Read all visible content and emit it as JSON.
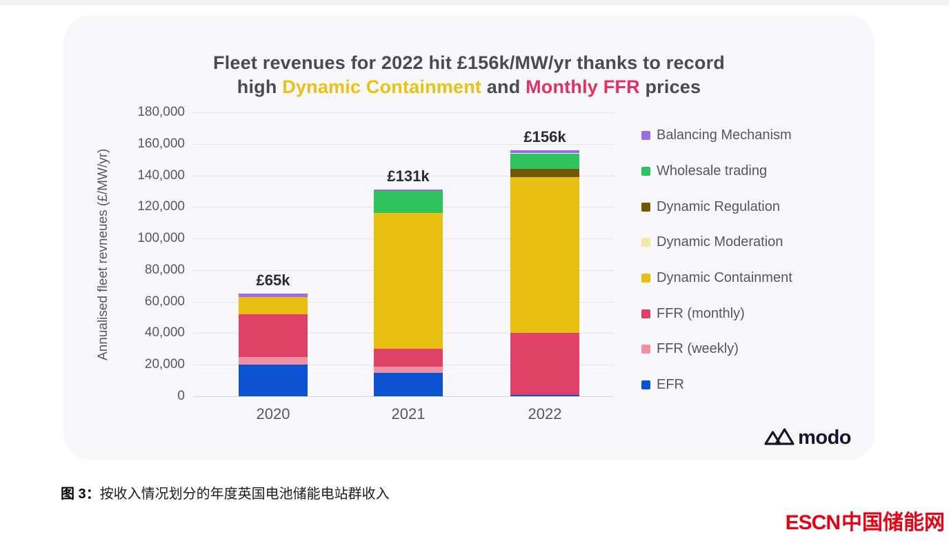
{
  "page": {
    "background": "#ffffff",
    "top_strip_color": "#f3f3f5",
    "card_background": "#f8f8fa"
  },
  "header": {
    "line1": "Fleet revenues for 2022 hit £156k/MW/yr thanks to record",
    "line2_parts": [
      {
        "text": "high ",
        "color": "#4b4b4e"
      },
      {
        "text": "Dynamic Containment",
        "color": "#ecc113"
      },
      {
        "text": " and ",
        "color": "#4b4b4e"
      },
      {
        "text": "Monthly FFR",
        "color": "#e3325f"
      },
      {
        "text": " prices",
        "color": "#4b4b4e"
      }
    ],
    "text_color": "#4b4b4e"
  },
  "chart_data": {
    "type": "bar",
    "stacked": true,
    "title": "Fleet revenues for 2022 hit £156k/MW/yr thanks to record high Dynamic Containment and Monthly FFR prices",
    "categories": [
      "2020",
      "2021",
      "2022"
    ],
    "series": [
      {
        "name": "EFR",
        "color": "#0b53d0",
        "values": [
          20000,
          15000,
          1000
        ]
      },
      {
        "name": "FFR (weekly)",
        "color": "#ef91a3",
        "values": [
          5000,
          4000,
          0
        ]
      },
      {
        "name": "FFR (monthly)",
        "color": "#e04167",
        "values": [
          27000,
          11000,
          39000
        ]
      },
      {
        "name": "Dynamic Containment",
        "color": "#e9c011",
        "values": [
          11000,
          86000,
          99000
        ]
      },
      {
        "name": "Dynamic Moderation",
        "color": "#f5e9a8",
        "values": [
          0,
          0,
          0
        ]
      },
      {
        "name": "Dynamic Regulation",
        "color": "#6f5808",
        "values": [
          0,
          0,
          5000
        ]
      },
      {
        "name": "Wholesale trading",
        "color": "#2dc45d",
        "values": [
          0,
          14000,
          10000
        ]
      },
      {
        "name": "Balancing Mechanism",
        "color": "#9b6ce8",
        "values": [
          2000,
          1000,
          2000
        ]
      }
    ],
    "bar_totals": [
      "£65k",
      "£131k",
      "£156k"
    ],
    "totals_by_year": {
      "2020": 65000,
      "2021": 131000,
      "2022": 156000
    },
    "ylabel": "Annualised fleet revneues (£/MW/yr)",
    "ylim": [
      0,
      180000
    ],
    "ytick_step": 20000,
    "ytick_labels": [
      "0",
      "20,000",
      "40,000",
      "60,000",
      "80,000",
      "100,000",
      "120,000",
      "140,000",
      "160,000",
      "180,000"
    ],
    "grid": "horizontal",
    "legend_position": "right",
    "legend_order_top_to_bottom": [
      "Balancing Mechanism",
      "Wholesale trading",
      "Dynamic Regulation",
      "Dynamic Moderation",
      "Dynamic Containment",
      "FFR (monthly)",
      "FFR (weekly)",
      "EFR"
    ]
  },
  "branding": {
    "modo_text": "modo",
    "modo_color": "#15152e",
    "escn_latin": "ESCN",
    "escn_cn": "中国储能网",
    "escn_color": "#e60113"
  },
  "caption": {
    "figure_label": "图 3",
    "separator": "：",
    "text": "按收入情况划分的年度英国电池储能电站群收入"
  }
}
